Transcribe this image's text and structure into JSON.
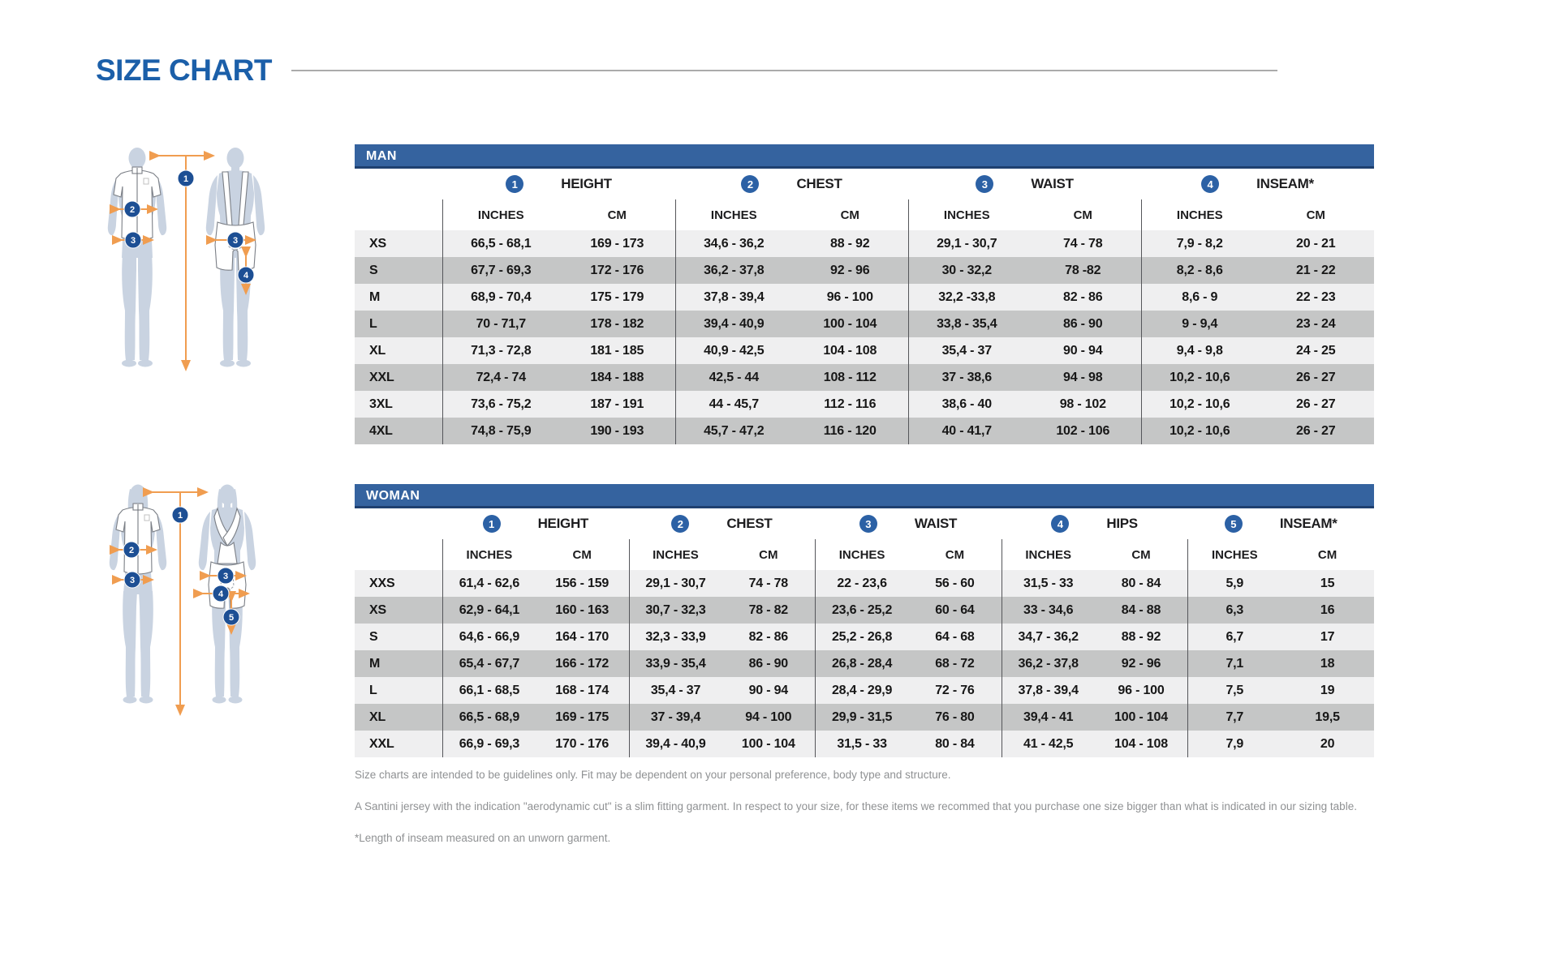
{
  "page": {
    "title": "SIZE CHART"
  },
  "colors": {
    "title_blue": "#1b5fa9",
    "bar_blue": "#35639f",
    "bar_border_navy": "#1f4070",
    "badge_blue": "#2c61a5",
    "figure_marker_blue": "#1d4f94",
    "row_light_gray": "#efeff0",
    "row_dark_gray": "#c5c6c6",
    "arrow_orange": "#f09d50",
    "figure_body": "#c9d3e1"
  },
  "man_table": {
    "header": "MAN",
    "groups": [
      {
        "num": "1",
        "label": "HEIGHT"
      },
      {
        "num": "2",
        "label": "CHEST"
      },
      {
        "num": "3",
        "label": "WAIST"
      },
      {
        "num": "4",
        "label": "INSEAM*"
      }
    ],
    "unit_headers": [
      "INCHES",
      "CM"
    ],
    "rows": [
      {
        "size": "XS",
        "values": [
          "66,5 - 68,1",
          "169 - 173",
          "34,6 - 36,2",
          "88 - 92",
          "29,1 - 30,7",
          "74 - 78",
          "7,9 - 8,2",
          "20 - 21"
        ]
      },
      {
        "size": "S",
        "values": [
          "67,7 - 69,3",
          "172 - 176",
          "36,2 - 37,8",
          "92 - 96",
          "30 - 32,2",
          "78 -82",
          "8,2 - 8,6",
          "21 - 22"
        ]
      },
      {
        "size": "M",
        "values": [
          "68,9 - 70,4",
          "175 - 179",
          "37,8 - 39,4",
          "96 - 100",
          "32,2 -33,8",
          "82 - 86",
          "8,6 - 9",
          "22 - 23"
        ]
      },
      {
        "size": "L",
        "values": [
          "70 - 71,7",
          "178 - 182",
          "39,4 - 40,9",
          "100 - 104",
          "33,8 - 35,4",
          "86 - 90",
          "9 - 9,4",
          "23 - 24"
        ]
      },
      {
        "size": "XL",
        "values": [
          "71,3 - 72,8",
          "181 - 185",
          "40,9 - 42,5",
          "104 - 108",
          "35,4 - 37",
          "90 - 94",
          "9,4 - 9,8",
          "24 - 25"
        ]
      },
      {
        "size": "XXL",
        "values": [
          "72,4 - 74",
          "184 - 188",
          "42,5 - 44",
          "108 - 112",
          "37 - 38,6",
          "94 - 98",
          "10,2 - 10,6",
          "26 - 27"
        ]
      },
      {
        "size": "3XL",
        "values": [
          "73,6 - 75,2",
          "187 - 191",
          "44 - 45,7",
          "112 - 116",
          "38,6 - 40",
          "98 - 102",
          "10,2 - 10,6",
          "26 - 27"
        ]
      },
      {
        "size": "4XL",
        "values": [
          "74,8 - 75,9",
          "190 - 193",
          "45,7 - 47,2",
          "116 - 120",
          "40 - 41,7",
          "102 - 106",
          "10,2 - 10,6",
          "26 - 27"
        ]
      }
    ]
  },
  "woman_table": {
    "header": "WOMAN",
    "groups": [
      {
        "num": "1",
        "label": "HEIGHT"
      },
      {
        "num": "2",
        "label": "CHEST"
      },
      {
        "num": "3",
        "label": "WAIST"
      },
      {
        "num": "4",
        "label": "HIPS"
      },
      {
        "num": "5",
        "label": "INSEAM*"
      }
    ],
    "unit_headers": [
      "INCHES",
      "CM"
    ],
    "rows": [
      {
        "size": "XXS",
        "values": [
          "61,4 - 62,6",
          "156 - 159",
          "29,1 - 30,7",
          "74 - 78",
          "22 - 23,6",
          "56 - 60",
          "31,5 - 33",
          "80 - 84",
          "5,9",
          "15"
        ]
      },
      {
        "size": "XS",
        "values": [
          "62,9 - 64,1",
          "160 - 163",
          "30,7 - 32,3",
          "78 - 82",
          "23,6 - 25,2",
          "60 - 64",
          "33 - 34,6",
          "84 - 88",
          "6,3",
          "16"
        ]
      },
      {
        "size": "S",
        "values": [
          "64,6 - 66,9",
          "164 - 170",
          "32,3 - 33,9",
          "82 - 86",
          "25,2 - 26,8",
          "64 - 68",
          "34,7 - 36,2",
          "88 - 92",
          "6,7",
          "17"
        ]
      },
      {
        "size": "M",
        "values": [
          "65,4 - 67,7",
          "166 - 172",
          "33,9 - 35,4",
          "86 - 90",
          "26,8 - 28,4",
          "68 - 72",
          "36,2 - 37,8",
          "92 - 96",
          "7,1",
          "18"
        ]
      },
      {
        "size": "L",
        "values": [
          "66,1 - 68,5",
          "168 - 174",
          "35,4 - 37",
          "90 - 94",
          "28,4 - 29,9",
          "72 - 76",
          "37,8 - 39,4",
          "96 - 100",
          "7,5",
          "19"
        ]
      },
      {
        "size": "XL",
        "values": [
          "66,5 - 68,9",
          "169 - 175",
          "37 - 39,4",
          "94 - 100",
          "29,9 - 31,5",
          "76 - 80",
          "39,4 - 41",
          "100 - 104",
          "7,7",
          "19,5"
        ]
      },
      {
        "size": "XXL",
        "values": [
          "66,9 - 69,3",
          "170 - 176",
          "39,4 - 40,9",
          "100 - 104",
          "31,5 - 33",
          "80 - 84",
          "41 - 42,5",
          "104 - 108",
          "7,9",
          "20"
        ]
      }
    ]
  },
  "figures": {
    "man": {
      "markers": [
        "1",
        "2",
        "3",
        "3",
        "4"
      ]
    },
    "woman": {
      "markers": [
        "1",
        "2",
        "3",
        "3",
        "4",
        "5"
      ]
    }
  },
  "footnotes": [
    "Size charts are intended to be guidelines only. Fit may be dependent on your personal preference, body type and structure.",
    "A Santini jersey with the indication \"aerodynamic cut\" is a slim fitting garment. In respect to your size, for these items we recommed that you purchase one size bigger than what is indicated in our sizing table.",
    "*Length of inseam measured on an unworn garment."
  ]
}
